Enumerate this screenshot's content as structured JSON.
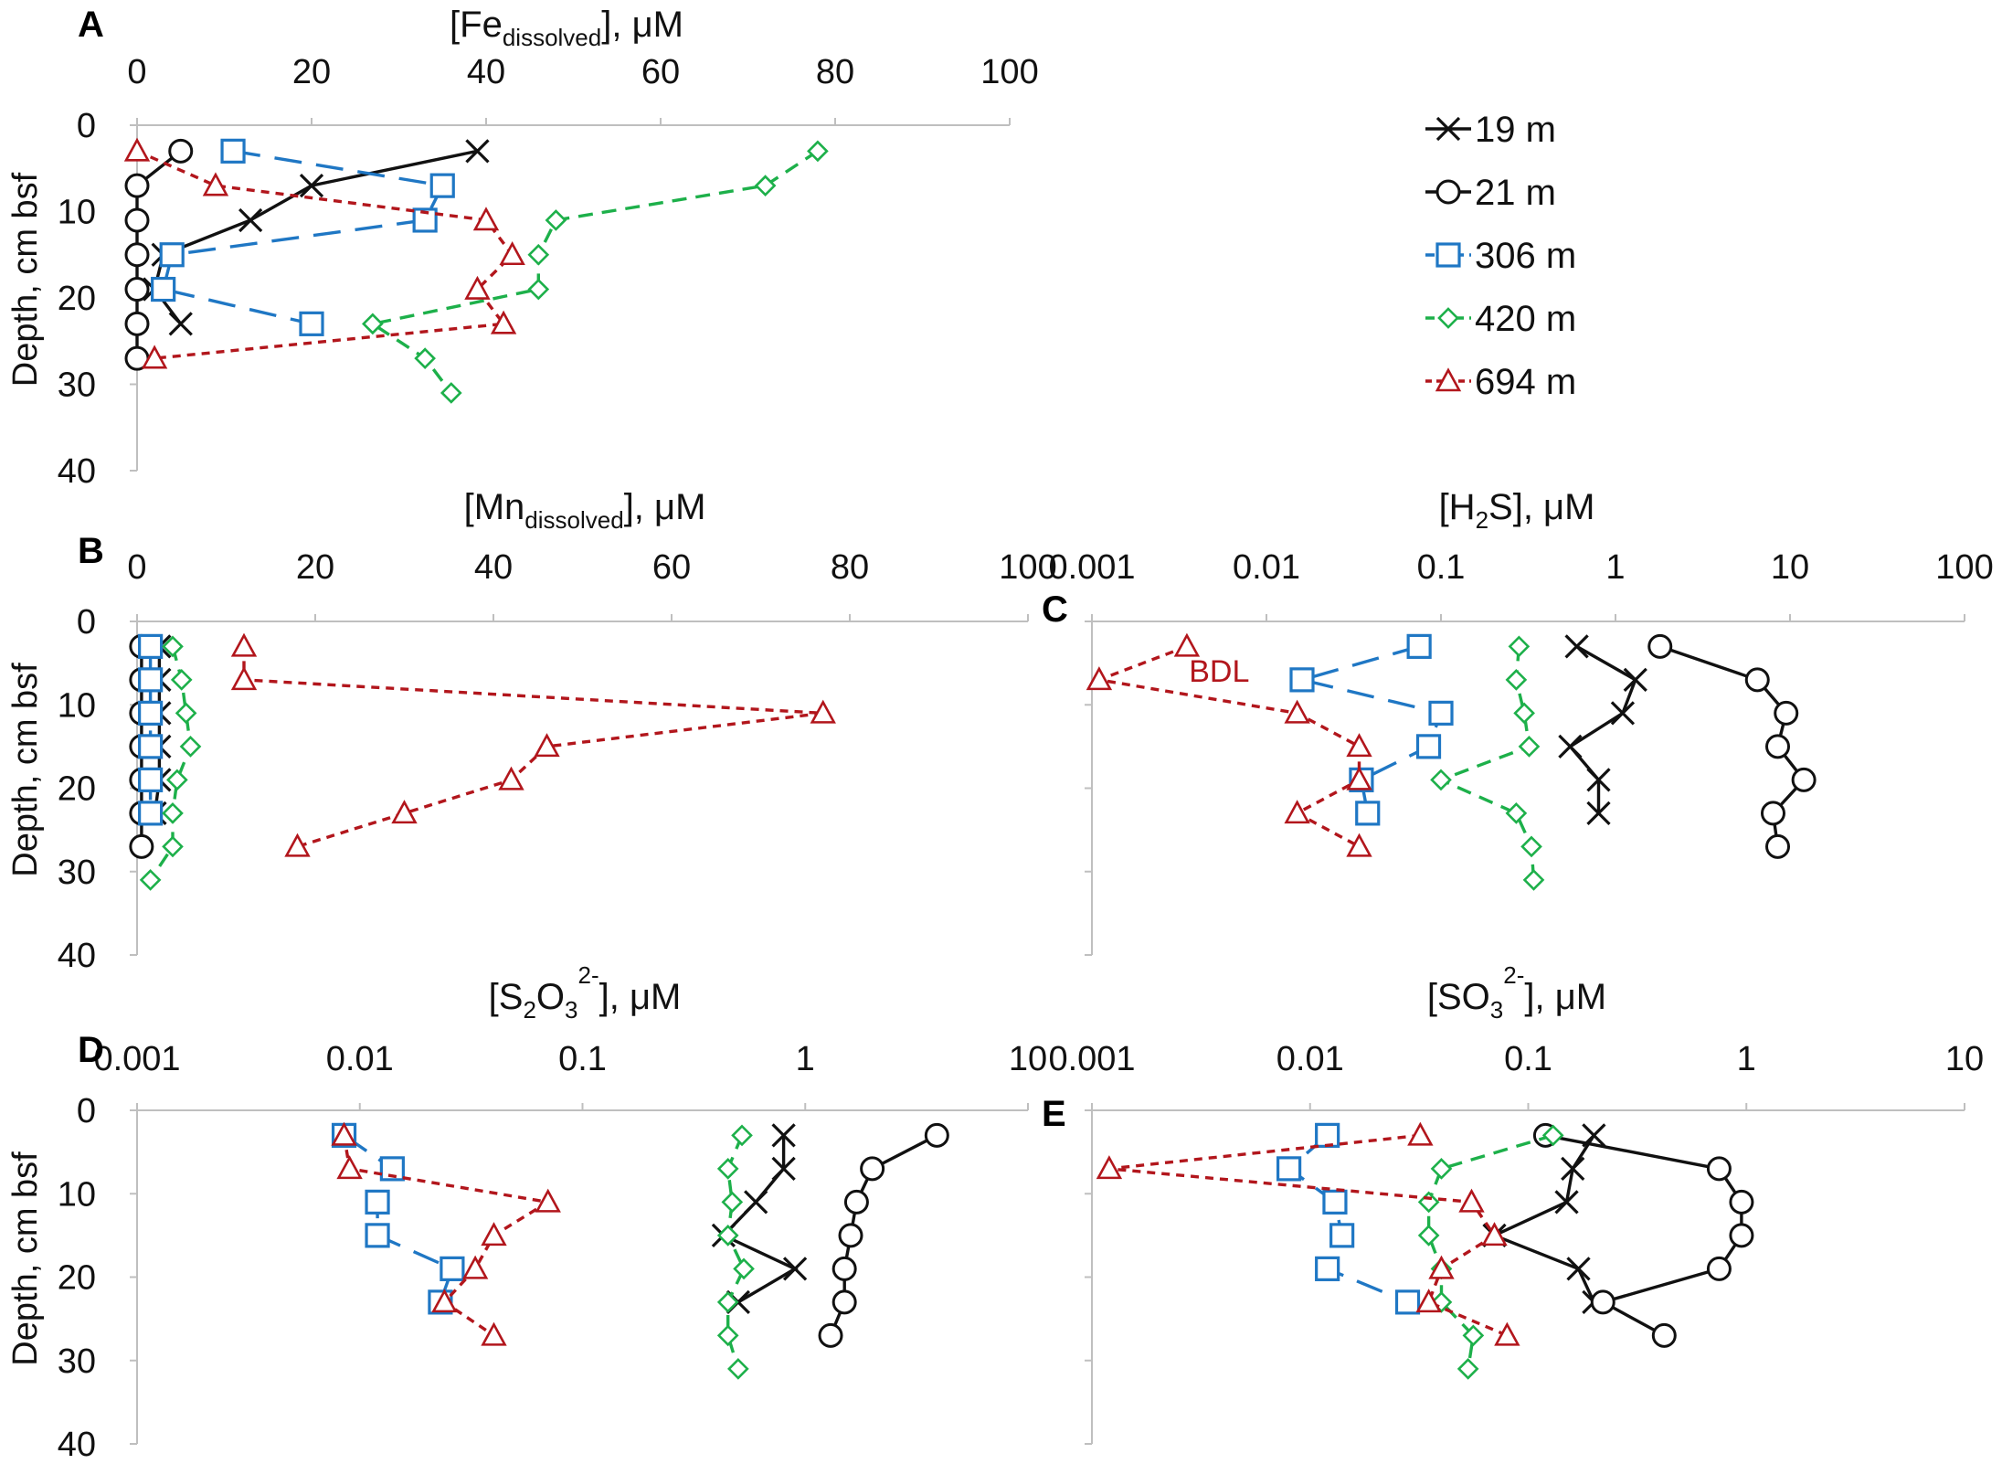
{
  "figure": {
    "y_axis_label": "Depth, cm bsf",
    "legend": [
      {
        "label": "19 m",
        "marker": "x",
        "color": "#111111",
        "dash": "solid"
      },
      {
        "label": "21 m",
        "marker": "o",
        "color": "#111111",
        "dash": "solid"
      },
      {
        "label": "306 m",
        "marker": "s",
        "color": "#1f77c4",
        "dash": "longdash"
      },
      {
        "label": "420 m",
        "marker": "d",
        "color": "#1db04a",
        "dash": "dash"
      },
      {
        "label": "694 m",
        "marker": "t",
        "color": "#b2161c",
        "dash": "dot"
      }
    ]
  },
  "chart_data": [
    {
      "panel": "A",
      "type": "line",
      "title_main": "[Fe",
      "title_sub": "dissolved",
      "title_tail": "], μM",
      "xscale": "linear",
      "xlim": [
        0,
        100
      ],
      "xticks": [
        "0",
        "20",
        "40",
        "60",
        "80",
        "100"
      ],
      "ylabel": "Depth, cm bsf",
      "ylim": [
        0,
        40
      ],
      "yticks": [
        "0",
        "10",
        "20",
        "30",
        "40"
      ],
      "series": [
        {
          "name": "19 m",
          "x": [
            39,
            20,
            13,
            3,
            2,
            5
          ],
          "y": [
            3,
            7,
            11,
            15,
            19,
            23
          ]
        },
        {
          "name": "21 m",
          "x": [
            5,
            0,
            0,
            0,
            0,
            0,
            0
          ],
          "y": [
            3,
            7,
            11,
            15,
            19,
            23,
            27
          ]
        },
        {
          "name": "306 m",
          "x": [
            11,
            35,
            33,
            4,
            3,
            20
          ],
          "y": [
            3,
            7,
            11,
            15,
            19,
            23
          ]
        },
        {
          "name": "420 m",
          "x": [
            78,
            72,
            48,
            46,
            46,
            27,
            33,
            36
          ],
          "y": [
            3,
            7,
            11,
            15,
            19,
            23,
            27,
            31
          ]
        },
        {
          "name": "694 m",
          "x": [
            0,
            9,
            40,
            43,
            39,
            42,
            2
          ],
          "y": [
            3,
            7,
            11,
            15,
            19,
            23,
            27
          ]
        }
      ]
    },
    {
      "panel": "B",
      "type": "line",
      "title_main": "[Mn",
      "title_sub": "dissolved",
      "title_tail": "], μM",
      "xscale": "linear",
      "xlim": [
        0,
        100
      ],
      "xticks": [
        "0",
        "20",
        "40",
        "60",
        "80",
        "100"
      ],
      "ylabel": "Depth, cm bsf",
      "ylim": [
        0,
        40
      ],
      "yticks": [
        "0",
        "10",
        "20",
        "30",
        "40"
      ],
      "series": [
        {
          "name": "19 m",
          "x": [
            2.5,
            2.5,
            2.5,
            2.5,
            2.5,
            2
          ],
          "y": [
            3,
            7,
            11,
            15,
            19,
            23
          ]
        },
        {
          "name": "21 m",
          "x": [
            0.5,
            0.5,
            0.5,
            0.5,
            0.5,
            0.5,
            0.5
          ],
          "y": [
            3,
            7,
            11,
            15,
            19,
            23,
            27
          ]
        },
        {
          "name": "306 m",
          "x": [
            1.5,
            1.5,
            1.5,
            1.5,
            1.5,
            1.5
          ],
          "y": [
            3,
            7,
            11,
            15,
            19,
            23
          ]
        },
        {
          "name": "420 m",
          "x": [
            4,
            5,
            5.5,
            6,
            4.5,
            4,
            4,
            1.5
          ],
          "y": [
            3,
            7,
            11,
            15,
            19,
            23,
            27,
            31
          ]
        },
        {
          "name": "694 m",
          "x": [
            12,
            12,
            77,
            46,
            42,
            30,
            18
          ],
          "y": [
            3,
            7,
            11,
            15,
            19,
            23,
            27
          ]
        }
      ]
    },
    {
      "panel": "C",
      "type": "line",
      "title_main": "[H",
      "title_sub": "2",
      "title_tail": "S], μM",
      "xscale": "log",
      "xlim": [
        0.001,
        100
      ],
      "xticks": [
        "0.001",
        "0.01",
        "0.1",
        "1",
        "10",
        "100"
      ],
      "ylim": [
        0,
        40
      ],
      "yticks": [],
      "annotation": "BDL",
      "series": [
        {
          "name": "19 m",
          "x": [
            0.6,
            1.3,
            1.1,
            0.55,
            0.8,
            0.8
          ],
          "y": [
            3,
            7,
            11,
            15,
            19,
            23
          ]
        },
        {
          "name": "21 m",
          "x": [
            1.8,
            6.5,
            9.5,
            8.5,
            12,
            8,
            8.5
          ],
          "y": [
            3,
            7,
            11,
            15,
            19,
            23,
            27
          ]
        },
        {
          "name": "306 m",
          "x": [
            0.075,
            0.016,
            0.1,
            0.085,
            0.035,
            0.038
          ],
          "y": [
            3,
            7,
            11,
            15,
            19,
            23
          ]
        },
        {
          "name": "420 m",
          "x": [
            0.28,
            0.27,
            0.3,
            0.32,
            0.1,
            0.27,
            0.33,
            0.34
          ],
          "y": [
            3,
            7,
            11,
            15,
            19,
            23,
            27,
            31
          ]
        },
        {
          "name": "694 m",
          "x": [
            0.0035,
            0.0011,
            0.015,
            0.034,
            0.034,
            0.015,
            0.034
          ],
          "y": [
            3,
            7,
            11,
            15,
            19,
            23,
            27
          ]
        }
      ]
    },
    {
      "panel": "D",
      "type": "line",
      "title_main": "[S",
      "title_sub": "2",
      "title_tail": "O",
      "title_sub2": "3",
      "title_sup": "2-",
      "title_end": "], μM",
      "xscale": "log",
      "xlim": [
        0.001,
        10
      ],
      "xticks": [
        "0.001",
        "0.01",
        "0.1",
        "1",
        "10"
      ],
      "ylabel": "Depth, cm bsf",
      "ylim": [
        0,
        40
      ],
      "yticks": [
        "0",
        "10",
        "20",
        "30",
        "40"
      ],
      "series": [
        {
          "name": "19 m",
          "x": [
            0.8,
            0.8,
            0.6,
            0.43,
            0.9,
            0.5
          ],
          "y": [
            3,
            7,
            11,
            15,
            19,
            23
          ]
        },
        {
          "name": "21 m",
          "x": [
            3.9,
            2.0,
            1.7,
            1.6,
            1.5,
            1.5,
            1.3
          ],
          "y": [
            3,
            7,
            11,
            15,
            19,
            23,
            27
          ]
        },
        {
          "name": "306 m",
          "x": [
            0.0085,
            0.014,
            0.012,
            0.012,
            0.026,
            0.023
          ],
          "y": [
            3,
            7,
            11,
            15,
            19,
            23
          ]
        },
        {
          "name": "420 m",
          "x": [
            0.52,
            0.45,
            0.47,
            0.45,
            0.53,
            0.45,
            0.45,
            0.5
          ],
          "y": [
            3,
            7,
            11,
            15,
            19,
            23,
            27,
            31
          ]
        },
        {
          "name": "694 m",
          "x": [
            0.0085,
            0.009,
            0.07,
            0.04,
            0.033,
            0.024,
            0.04
          ],
          "y": [
            3,
            7,
            11,
            15,
            19,
            23,
            27
          ]
        }
      ]
    },
    {
      "panel": "E",
      "type": "line",
      "title_main": "[SO",
      "title_sub": "3",
      "title_sup": "2-",
      "title_tail": "], μM",
      "xscale": "log",
      "xlim": [
        0.001,
        10
      ],
      "xticks": [
        "0.001",
        "0.01",
        "0.1",
        "1",
        "10"
      ],
      "ylim": [
        0,
        40
      ],
      "yticks": [],
      "series": [
        {
          "name": "19 m",
          "x": [
            0.2,
            0.16,
            0.15,
            0.07,
            0.17,
            0.2
          ],
          "y": [
            3,
            7,
            11,
            15,
            19,
            23
          ]
        },
        {
          "name": "21 m",
          "x": [
            0.12,
            0.75,
            0.95,
            0.95,
            0.75,
            0.22,
            0.42
          ],
          "y": [
            3,
            7,
            11,
            15,
            19,
            23,
            27
          ]
        },
        {
          "name": "306 m",
          "x": [
            0.012,
            0.008,
            0.013,
            0.014,
            0.012,
            0.028
          ],
          "y": [
            3,
            7,
            11,
            15,
            19,
            23
          ]
        },
        {
          "name": "420 m",
          "x": [
            0.13,
            0.04,
            0.035,
            0.035,
            0.04,
            0.04,
            0.056,
            0.053
          ],
          "y": [
            3,
            7,
            11,
            15,
            19,
            23,
            27,
            31
          ]
        },
        {
          "name": "694 m",
          "x": [
            0.032,
            0.0012,
            0.055,
            0.07,
            0.04,
            0.035,
            0.08
          ],
          "y": [
            3,
            7,
            11,
            15,
            19,
            23,
            27
          ]
        }
      ]
    }
  ]
}
